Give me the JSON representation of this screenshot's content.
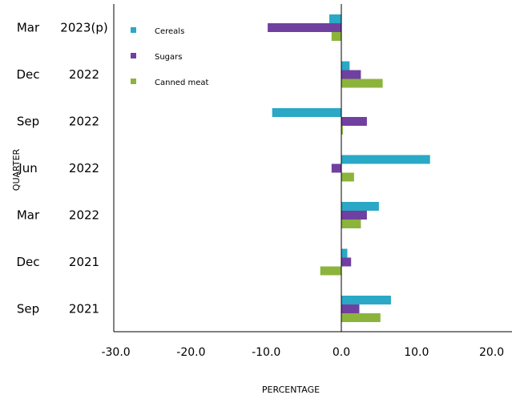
{
  "chart_data": {
    "type": "bar",
    "orientation": "horizontal",
    "title": "",
    "xlabel": "PERCENTAGE",
    "ylabel": "QUARTER",
    "xlim": [
      -30,
      20
    ],
    "xticks": [
      -30,
      -20,
      -10,
      0,
      10,
      20
    ],
    "xtick_labels": [
      "-30.0",
      "-20.0",
      "-10.0",
      "0.0",
      "10.0",
      "20.0"
    ],
    "categories": [
      {
        "period": "Mar",
        "year": "2023(p)"
      },
      {
        "period": "Dec",
        "year": "2022"
      },
      {
        "period": "Sep",
        "year": "2022"
      },
      {
        "period": "Jun",
        "year": "2022"
      },
      {
        "period": "Mar",
        "year": "2022"
      },
      {
        "period": "Dec",
        "year": "2021"
      },
      {
        "period": "Sep",
        "year": "2021"
      }
    ],
    "series": [
      {
        "name": "Cereals",
        "color": "#2aa8c6",
        "values": [
          -1.6,
          1.1,
          -9.2,
          11.8,
          5.0,
          0.8,
          6.6
        ]
      },
      {
        "name": "Sugars",
        "color": "#7040a0",
        "values": [
          -9.8,
          2.6,
          3.4,
          -1.3,
          3.4,
          1.3,
          2.4
        ]
      },
      {
        "name": "Canned meat",
        "color": "#8cb43c",
        "values": [
          -1.3,
          5.5,
          0.2,
          1.7,
          2.6,
          -2.8,
          5.2
        ]
      }
    ],
    "grid": false,
    "legend_position": "top-left"
  }
}
